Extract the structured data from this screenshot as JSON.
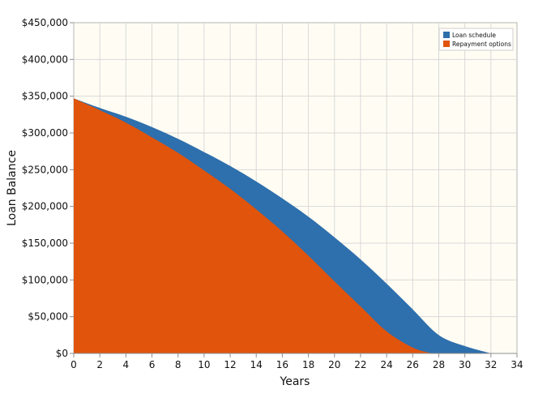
{
  "chart_data": {
    "type": "area",
    "xlabel": "Years",
    "ylabel": "Loan Balance",
    "xlim": [
      0,
      34
    ],
    "ylim": [
      0,
      450000
    ],
    "x_ticks": [
      "0",
      "2",
      "4",
      "6",
      "8",
      "10",
      "12",
      "14",
      "16",
      "18",
      "20",
      "22",
      "24",
      "26",
      "28",
      "30",
      "32",
      "34"
    ],
    "y_ticks": [
      "$0",
      "$50,000",
      "$100,000",
      "$150,000",
      "$200,000",
      "$250,000",
      "$300,000",
      "$350,000",
      "$400,000",
      "$450,000"
    ],
    "grid": true,
    "legend_position": "top-right",
    "series": [
      {
        "name": "Loan schedule",
        "color": "#2e6fad",
        "x": [
          0,
          2,
          4,
          6,
          8,
          10,
          12,
          14,
          16,
          18,
          20,
          22,
          24,
          26,
          28,
          30,
          32
        ],
        "values": [
          347000,
          334000,
          322000,
          308000,
          292000,
          274000,
          255000,
          234000,
          211000,
          186000,
          158000,
          128000,
          95000,
          60000,
          25000,
          10000,
          0
        ]
      },
      {
        "name": "Repayment options",
        "color": "#e0540c",
        "x": [
          0,
          2,
          4,
          6,
          8,
          10,
          12,
          14,
          16,
          18,
          20,
          22,
          24,
          26,
          27.5
        ],
        "values": [
          347000,
          331000,
          314000,
          294000,
          273000,
          249000,
          224000,
          196000,
          166000,
          133000,
          98000,
          64000,
          30000,
          8000,
          0
        ]
      }
    ]
  }
}
